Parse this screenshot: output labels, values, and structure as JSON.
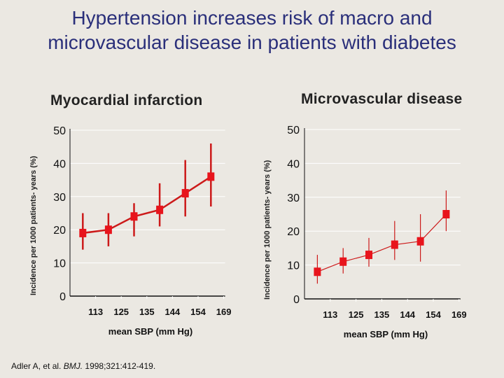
{
  "title_line1": "Hypertension increases risk of macro and",
  "title_line2": "microvascular disease in patients with diabetes",
  "citation": {
    "authors": "Adler A, et al. ",
    "journal": "BMJ.",
    "ref": " 1998;321:412-419."
  },
  "colors": {
    "series": "#e8141c",
    "line": "#cc1a1a",
    "title": "#2a2f7a",
    "grid": "#ffffff"
  },
  "chart_data": [
    {
      "type": "line",
      "title": "Myocardial infarction",
      "xlabel": "mean SBP (mm Hg)",
      "ylabel": "Incidence per 1000 patients- years (%)",
      "x_tick_labels": [
        "113",
        "125",
        "135",
        "144",
        "154",
        "169"
      ],
      "y_ticks": [
        0,
        10,
        20,
        30,
        40,
        50
      ],
      "ylim": [
        0,
        50
      ],
      "grid": true,
      "values": [
        19,
        20,
        24,
        26,
        31,
        36
      ],
      "error_low": [
        14,
        15,
        18,
        21,
        24,
        27
      ],
      "error_high": [
        25,
        25,
        28,
        34,
        41,
        46
      ]
    },
    {
      "type": "line",
      "title": "Microvascular disease",
      "xlabel": "mean SBP (mm Hg)",
      "ylabel": "Incidence per 1000 patients- years (%)",
      "x_tick_labels": [
        "113",
        "125",
        "135",
        "144",
        "154",
        "169"
      ],
      "y_ticks": [
        0,
        10,
        20,
        30,
        40,
        50
      ],
      "ylim": [
        0,
        50
      ],
      "grid": true,
      "values": [
        8,
        11,
        13,
        16,
        17,
        25
      ],
      "error_low": [
        4.5,
        7.5,
        9.5,
        11.5,
        11,
        20
      ],
      "error_high": [
        13,
        15,
        18,
        23,
        25,
        32
      ]
    }
  ]
}
